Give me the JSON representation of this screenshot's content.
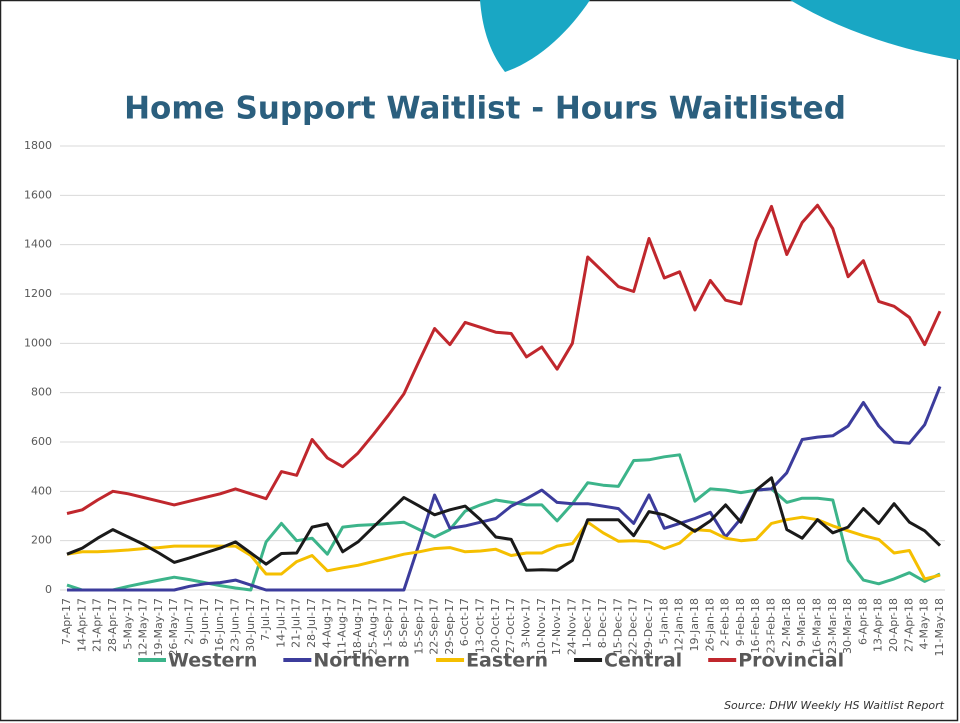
{
  "chart_data": {
    "type": "line",
    "title": "Home Support Waitlist - Hours Waitlisted",
    "source": "Source: DHW Weekly HS Waitlist Report",
    "categories": [
      "7-Apr-17",
      "14-Apr-17",
      "21-Apr-17",
      "28-Apr-17",
      "5-May-17",
      "12-May-17",
      "19-May-17",
      "26-May-17",
      "2-Jun-17",
      "9-Jun-17",
      "16-Jun-17",
      "23-Jun-17",
      "30-Jun-17",
      "7-Jul-17",
      "14-Jul-17",
      "21-Jul-17",
      "28-Jul-17",
      "4-Aug-17",
      "11-Aug-17",
      "18-Aug-17",
      "25-Aug-17",
      "1-Sep-17",
      "8-Sep-17",
      "15-Sep-17",
      "22-Sep-17",
      "29-Sep-17",
      "6-Oct-17",
      "13-Oct-17",
      "20-Oct-17",
      "27-Oct-17",
      "3-Nov-17",
      "10-Nov-17",
      "17-Nov-17",
      "24-Nov-17",
      "1-Dec-17",
      "8-Dec-17",
      "15-Dec-17",
      "22-Dec-17",
      "29-Dec-17",
      "5-Jan-18",
      "12-Jan-18",
      "19-Jan-18",
      "26-Jan-18",
      "2-Feb-18",
      "9-Feb-18",
      "16-Feb-18",
      "23-Feb-18",
      "2-Mar-18",
      "9-Mar-18",
      "16-Mar-18",
      "23-Mar-18",
      "30-Mar-18",
      "6-Apr-18",
      "13-Apr-18",
      "20-Apr-18",
      "27-Apr-18",
      "4-May-18",
      "11-May-18"
    ],
    "series": [
      {
        "name": "Western",
        "color": "#3cb48a",
        "values": [
          20,
          0,
          0,
          0,
          15,
          28,
          40,
          52,
          42,
          30,
          18,
          8,
          0,
          195,
          270,
          200,
          210,
          145,
          255,
          262,
          265,
          270,
          275,
          245,
          215,
          245,
          320,
          345,
          365,
          355,
          345,
          345,
          280,
          350,
          435,
          425,
          420,
          525,
          528,
          540,
          548,
          360,
          410,
          405,
          395,
          405,
          410,
          355,
          372,
          372,
          365,
          120,
          40,
          25,
          45,
          70,
          35,
          65
        ]
      },
      {
        "name": "Northern",
        "color": "#3c3c9c",
        "values": [
          0,
          0,
          0,
          0,
          0,
          0,
          0,
          0,
          15,
          25,
          30,
          40,
          20,
          0,
          0,
          0,
          0,
          0,
          0,
          0,
          0,
          0,
          0,
          190,
          385,
          250,
          260,
          275,
          290,
          340,
          370,
          405,
          355,
          350,
          350,
          340,
          330,
          270,
          385,
          250,
          270,
          290,
          315,
          215,
          290,
          405,
          410,
          475,
          610,
          620,
          625,
          665,
          760,
          665,
          600,
          595,
          670,
          825
        ]
      },
      {
        "name": "Eastern",
        "color": "#f5bf00",
        "values": [
          145,
          155,
          155,
          158,
          162,
          168,
          172,
          178,
          178,
          178,
          178,
          178,
          140,
          65,
          65,
          115,
          140,
          78,
          90,
          100,
          115,
          130,
          145,
          155,
          168,
          172,
          155,
          158,
          165,
          140,
          150,
          150,
          178,
          188,
          275,
          232,
          198,
          200,
          195,
          168,
          190,
          245,
          240,
          210,
          200,
          205,
          270,
          285,
          295,
          285,
          260,
          240,
          220,
          205,
          150,
          160,
          45,
          60
        ]
      },
      {
        "name": "Central",
        "color": "#1a1a1a",
        "values": [
          145,
          170,
          210,
          245,
          215,
          185,
          150,
          112,
          130,
          150,
          170,
          195,
          150,
          105,
          148,
          150,
          255,
          268,
          155,
          195,
          255,
          315,
          375,
          340,
          305,
          325,
          340,
          285,
          215,
          205,
          80,
          82,
          80,
          120,
          285,
          285,
          285,
          220,
          318,
          305,
          275,
          238,
          280,
          345,
          275,
          405,
          455,
          245,
          210,
          285,
          232,
          255,
          330,
          270,
          350,
          275,
          240,
          180
        ]
      },
      {
        "name": "Provincial",
        "color": "#c0272d",
        "values": [
          310,
          325,
          365,
          400,
          390,
          375,
          360,
          345,
          360,
          375,
          390,
          410,
          390,
          370,
          480,
          465,
          610,
          535,
          500,
          555,
          630,
          710,
          795,
          930,
          1060,
          995,
          1085,
          1065,
          1045,
          1040,
          945,
          985,
          895,
          1000,
          1350,
          1290,
          1230,
          1210,
          1425,
          1265,
          1290,
          1135,
          1255,
          1175,
          1160,
          1415,
          1555,
          1360,
          1490,
          1560,
          1465,
          1270,
          1335,
          1170,
          1150,
          1105,
          995,
          1130
        ]
      }
    ],
    "ylim": [
      0,
      1800
    ],
    "yticks": [
      0,
      200,
      400,
      600,
      800,
      1000,
      1200,
      1400,
      1600,
      1800
    ],
    "grid": true
  }
}
